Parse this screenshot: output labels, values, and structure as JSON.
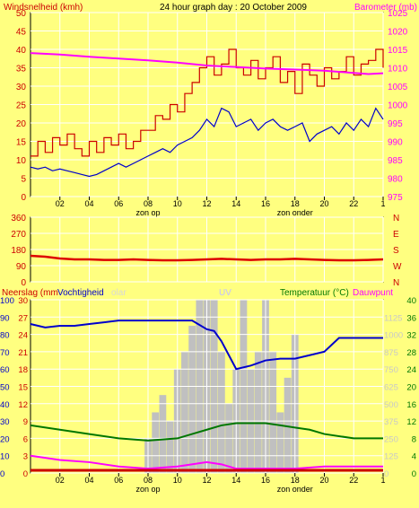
{
  "header": {
    "left": "Windsnelheid (kmh)",
    "center": "24 hour graph day : 20 October 2009",
    "right": "Barometer (mb)"
  },
  "colors": {
    "background": "#FFFF80",
    "windspeed": "#CC0000",
    "gust": "#CC0000",
    "windavg": "#0000CC",
    "barometer": "#FF00FF",
    "winddir": "#DD0000",
    "humidity": "#0000CC",
    "temperature": "#007700",
    "dewpoint": "#FF00FF",
    "solar": "#C0C0C0",
    "rain": "#CC0000",
    "grid": "#FFFFFF"
  },
  "chart_data": [
    {
      "type": "line",
      "id": "wind-barometer",
      "xlabel": "",
      "x_ticks": [
        "02",
        "04",
        "06",
        "08",
        "10",
        "12",
        "14",
        "16",
        "18",
        "20",
        "22",
        "1"
      ],
      "x_range_hours": [
        0,
        24
      ],
      "annotations": [
        {
          "hour": 8,
          "text": "zon op"
        },
        {
          "hour": 18,
          "text": "zon onder"
        }
      ],
      "left_axis": {
        "label": "Windsnelheid (kmh)",
        "ticks": [
          0,
          5,
          10,
          15,
          20,
          25,
          30,
          35,
          40,
          45,
          50
        ],
        "ylim": [
          0,
          50
        ]
      },
      "right_axis": {
        "label": "Barometer (mb)",
        "ticks": [
          975,
          980,
          985,
          990,
          995,
          1000,
          1005,
          1010,
          1015,
          1020,
          1025
        ],
        "ylim": [
          975,
          1025
        ]
      },
      "series": [
        {
          "key": "gust",
          "axis": "left",
          "style": "step",
          "hours": [
            0,
            0.5,
            1,
            1.5,
            2,
            2.5,
            3,
            3.5,
            4,
            4.5,
            5,
            5.5,
            6,
            6.5,
            7,
            7.5,
            8,
            8.5,
            9,
            9.5,
            10,
            10.5,
            11,
            11.5,
            12,
            12.5,
            13,
            13.5,
            14,
            14.5,
            15,
            15.5,
            16,
            16.5,
            17,
            17.5,
            18,
            18.5,
            19,
            19.5,
            20,
            20.5,
            21,
            21.5,
            22,
            22.5,
            23,
            23.5,
            24
          ],
          "values": [
            11,
            15,
            12,
            16,
            14,
            17,
            13,
            11,
            15,
            12,
            16,
            14,
            17,
            13,
            15,
            18,
            18,
            22,
            21,
            25,
            23,
            28,
            31,
            35,
            38,
            33,
            36,
            40,
            35,
            33,
            37,
            32,
            35,
            38,
            31,
            34,
            28,
            36,
            33,
            30,
            35,
            32,
            34,
            38,
            33,
            36,
            37,
            40,
            35
          ]
        },
        {
          "key": "windavg",
          "axis": "left",
          "hours": [
            0,
            0.5,
            1,
            1.5,
            2,
            2.5,
            3,
            3.5,
            4,
            4.5,
            5,
            5.5,
            6,
            6.5,
            7,
            7.5,
            8,
            8.5,
            9,
            9.5,
            10,
            10.5,
            11,
            11.5,
            12,
            12.5,
            13,
            13.5,
            14,
            14.5,
            15,
            15.5,
            16,
            16.5,
            17,
            17.5,
            18,
            18.5,
            19,
            19.5,
            20,
            20.5,
            21,
            21.5,
            22,
            22.5,
            23,
            23.5,
            24
          ],
          "values": [
            8,
            7.5,
            8,
            7,
            7.5,
            7,
            6.5,
            6,
            5.5,
            6,
            7,
            8,
            9,
            8,
            9,
            10,
            11,
            12,
            13,
            12,
            14,
            15,
            16,
            18,
            21,
            19,
            24,
            23,
            19,
            20,
            21,
            18,
            20,
            21,
            19,
            18,
            19,
            20,
            15,
            17,
            18,
            19,
            17,
            20,
            18,
            21,
            19,
            24,
            21
          ]
        },
        {
          "key": "barometer",
          "axis": "right",
          "hours": [
            0,
            2,
            4,
            6,
            8,
            10,
            12,
            14,
            16,
            18,
            20,
            22,
            23,
            24
          ],
          "values": [
            1014,
            1013.6,
            1013,
            1012.5,
            1012,
            1011.4,
            1010.6,
            1010.2,
            1009.8,
            1009.5,
            1009.2,
            1008.6,
            1008.3,
            1008.5
          ]
        }
      ]
    },
    {
      "type": "line",
      "id": "wind-direction",
      "xlabel": "",
      "left_axis": {
        "label": "",
        "ticks": [
          0,
          90,
          180,
          270,
          360
        ],
        "ylim": [
          0,
          360
        ]
      },
      "right_axis_labels": [
        "N",
        "W",
        "S",
        "E",
        "N"
      ],
      "series": [
        {
          "key": "winddir",
          "hours": [
            0,
            1,
            2,
            3,
            4,
            5,
            6,
            7,
            8,
            9,
            10,
            11,
            12,
            13,
            14,
            15,
            16,
            17,
            18,
            19,
            20,
            21,
            22,
            23,
            24
          ],
          "values": [
            145,
            140,
            130,
            125,
            125,
            122,
            122,
            125,
            122,
            120,
            120,
            122,
            125,
            128,
            125,
            122,
            125,
            125,
            128,
            125,
            122,
            120,
            120,
            122,
            125
          ]
        }
      ]
    },
    {
      "type": "line",
      "id": "rain-humidity-temp",
      "xlabel": "",
      "x_ticks": [
        "02",
        "04",
        "06",
        "08",
        "10",
        "12",
        "14",
        "16",
        "18",
        "20",
        "22",
        "1"
      ],
      "annotations": [
        {
          "hour": 8,
          "text": "zon op"
        },
        {
          "hour": 18,
          "text": "zon onder"
        }
      ],
      "labels": {
        "rain": "Neerslag (mm",
        "humidity": "Vochtigheid",
        "solar": "olar",
        "uv": "UV",
        "temperature": "Temperatuur (°C)",
        "dewpoint": "Dauwpunt"
      },
      "axis_humidity": {
        "ticks": [
          0,
          10,
          20,
          30,
          40,
          50,
          60,
          70,
          80,
          90,
          100
        ],
        "ylim": [
          0,
          100
        ]
      },
      "axis_rain": {
        "ticks": [
          0,
          3,
          6,
          9,
          12,
          15,
          18,
          21,
          24,
          27,
          30
        ],
        "ylim": [
          0,
          30
        ]
      },
      "axis_solar": {
        "ticks": [
          0,
          125,
          250,
          375,
          500,
          625,
          750,
          875,
          1000,
          1125
        ],
        "ylim": [
          0,
          1250
        ]
      },
      "axis_temperature": {
        "ticks": [
          0,
          4,
          8,
          12,
          16,
          20,
          24,
          28,
          32,
          36,
          40
        ],
        "ylim": [
          0,
          40
        ]
      },
      "series": [
        {
          "key": "solar",
          "axis": "humidity",
          "style": "bars",
          "hours": [
            8,
            8.5,
            9,
            9.5,
            10,
            10.5,
            11,
            11.5,
            12,
            12.5,
            13,
            13.5,
            14,
            14.5,
            15,
            15.5,
            16,
            16.5,
            17,
            17.5,
            18
          ],
          "values": [
            20,
            35,
            45,
            30,
            60,
            70,
            85,
            100,
            100,
            100,
            70,
            40,
            60,
            100,
            60,
            70,
            100,
            70,
            35,
            55,
            80
          ]
        },
        {
          "key": "humidity",
          "axis": "humidity",
          "hours": [
            0,
            1,
            2,
            3,
            4,
            5,
            6,
            7,
            8,
            9,
            10,
            11,
            12,
            12.5,
            13,
            13.5,
            14,
            15,
            16,
            17,
            18,
            19,
            20,
            21,
            22,
            23,
            24
          ],
          "values": [
            86,
            84,
            85,
            85,
            86,
            87,
            88,
            88,
            88,
            88,
            88,
            88,
            83,
            82,
            76,
            68,
            60,
            62,
            65,
            66,
            66,
            68,
            70,
            78,
            78,
            78,
            78
          ]
        },
        {
          "key": "temperature",
          "axis": "temperature",
          "hours": [
            0,
            2,
            4,
            6,
            8,
            10,
            11,
            12,
            13,
            14,
            15,
            16,
            17,
            18,
            19,
            20,
            22,
            24
          ],
          "values": [
            11,
            10,
            9,
            8,
            7.5,
            8,
            9,
            10,
            11,
            11.5,
            11.5,
            11.5,
            11,
            10.5,
            10,
            9,
            8,
            8
          ]
        },
        {
          "key": "dewpoint",
          "axis": "temperature",
          "hours": [
            0,
            2,
            4,
            6,
            8,
            10,
            12,
            13,
            14,
            16,
            18,
            20,
            22,
            24
          ],
          "values": [
            4,
            3,
            2.5,
            1.5,
            1,
            1.5,
            2.5,
            2,
            1,
            1,
            1,
            1.5,
            1.5,
            1.5
          ]
        },
        {
          "key": "rain",
          "axis": "rain",
          "values_note": "",
          "hours": [
            0,
            24
          ],
          "values": [
            0,
            0
          ]
        }
      ]
    }
  ]
}
